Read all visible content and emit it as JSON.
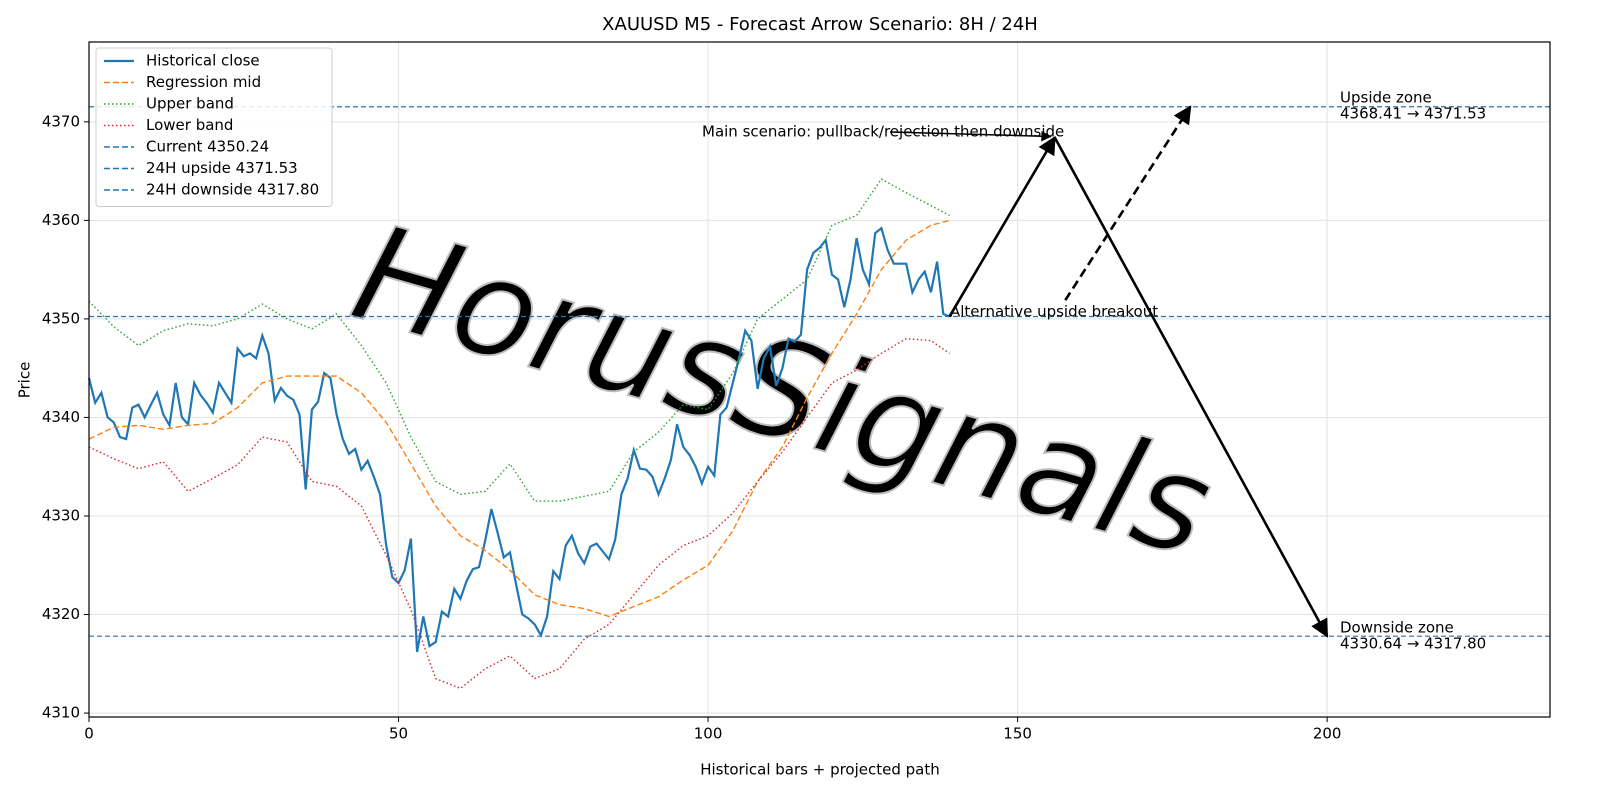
{
  "chart_data": {
    "type": "line",
    "title": "XAUUSD M5 - Forecast Arrow Scenario: 8H / 24H",
    "xlabel": "Historical bars + projected path",
    "ylabel": "Price",
    "xlim": [
      0,
      236
    ],
    "ylim": [
      4309.6,
      4378.1
    ],
    "xticks": [
      0,
      50,
      100,
      150,
      200
    ],
    "yticks": [
      4310,
      4320,
      4330,
      4340,
      4350,
      4360,
      4370
    ],
    "grid": true,
    "legend": "upper left",
    "watermark": "HorusSignals",
    "series": [
      {
        "name": "Historical close",
        "color": "#1f77b4",
        "style": "solid",
        "x": [
          0,
          1,
          2,
          3,
          4,
          5,
          6,
          7,
          8,
          9,
          10,
          11,
          12,
          13,
          14,
          15,
          16,
          17,
          18,
          19,
          20,
          21,
          22,
          23,
          24,
          25,
          26,
          27,
          28,
          29,
          30,
          31,
          32,
          33,
          34,
          35,
          36,
          37,
          38,
          39,
          40,
          41,
          42,
          43,
          44,
          45,
          46,
          47,
          48,
          49,
          50,
          51,
          52,
          53,
          54,
          55,
          56,
          57,
          58,
          59,
          60,
          61,
          62,
          63,
          64,
          65,
          66,
          67,
          68,
          69,
          70,
          71,
          72,
          73,
          74,
          75,
          76,
          77,
          78,
          79,
          80,
          81,
          82,
          83,
          84,
          85,
          86,
          87,
          88,
          89,
          90,
          91,
          92,
          93,
          94,
          95,
          96,
          97,
          98,
          99,
          100,
          101,
          102,
          103,
          104,
          105,
          106,
          107,
          108,
          109,
          110,
          111,
          112,
          113,
          114,
          115,
          116,
          117,
          118,
          119,
          120,
          121,
          122,
          123,
          124,
          125,
          126,
          127,
          128,
          129,
          130,
          131,
          132,
          133,
          134,
          135,
          136,
          137,
          138,
          139
        ],
        "values": [
          4344,
          4341.5,
          4342.5,
          4340,
          4339.5,
          4338,
          4337.8,
          4341,
          4341.3,
          4340,
          4341.3,
          4342.5,
          4340.3,
          4339.2,
          4343.5,
          4340,
          4339.3,
          4343.5,
          4342.3,
          4341.5,
          4340.5,
          4343.5,
          4342.5,
          4341.5,
          4347,
          4346.2,
          4346.5,
          4346,
          4348.3,
          4346.5,
          4341.7,
          4343,
          4342.2,
          4341.8,
          4340.3,
          4332.7,
          4340.8,
          4341.6,
          4344.5,
          4344,
          4340.3,
          4337.8,
          4336.3,
          4336.8,
          4334.7,
          4335.6,
          4334,
          4332.2,
          4327,
          4323.8,
          4323.2,
          4324.5,
          4327.7,
          4316.2,
          4319.8,
          4316.8,
          4317.2,
          4320.3,
          4319.8,
          4322.6,
          4321.6,
          4323.4,
          4324.6,
          4324.8,
          4327.5,
          4330.7,
          4328.3,
          4325.8,
          4326.3,
          4323,
          4320,
          4319.6,
          4319,
          4317.9,
          4319.8,
          4324.4,
          4323.6,
          4327,
          4328,
          4326.2,
          4325.2,
          4326.9,
          4327.2,
          4326.4,
          4325.6,
          4327.6,
          4332.2,
          4333.8,
          4336.7,
          4334.8,
          4334.7,
          4334,
          4332.2,
          4333.8,
          4335.7,
          4339.3,
          4337,
          4336.2,
          4335,
          4333.3,
          4335,
          4334.1,
          4340.3,
          4341,
          4343.5,
          4346,
          4348.8,
          4347.8,
          4342.9,
          4346,
          4347.2,
          4343.2,
          4345,
          4348,
          4347.7,
          4348.4,
          4355,
          4356.7,
          4357.2,
          4358,
          4354.5,
          4354,
          4351.2,
          4354,
          4358.2,
          4355,
          4353.5,
          4358.7,
          4359.2,
          4357,
          4355.6,
          4355.6,
          4355.6,
          4352.7,
          4354,
          4354.8,
          4352.7,
          4355.8,
          4350.5,
          4350.24
        ]
      },
      {
        "name": "Regression mid",
        "color": "#ff7f0e",
        "style": "dashed",
        "x": [
          0,
          4,
          8,
          12,
          16,
          20,
          24,
          28,
          32,
          36,
          40,
          44,
          48,
          52,
          56,
          60,
          64,
          68,
          72,
          76,
          80,
          84,
          88,
          92,
          96,
          100,
          104,
          108,
          112,
          116,
          120,
          124,
          128,
          132,
          136,
          139
        ],
        "values": [
          4337.8,
          4339,
          4339.2,
          4338.8,
          4339.2,
          4339.4,
          4341,
          4343.5,
          4344.2,
          4344.2,
          4344.2,
          4342.5,
          4339.5,
          4335.3,
          4331,
          4328,
          4326.5,
          4324.5,
          4322,
          4321,
          4320.6,
          4319.8,
          4320.8,
          4321.8,
          4323.5,
          4325,
          4328.5,
          4333.5,
          4337,
          4342,
          4346.5,
          4350.5,
          4355,
          4358,
          4359.5,
          4360
        ]
      },
      {
        "name": "Upper band",
        "color": "#2ca02c",
        "style": "dotted",
        "x": [
          0,
          4,
          8,
          12,
          16,
          20,
          24,
          28,
          32,
          36,
          40,
          44,
          48,
          52,
          56,
          60,
          64,
          68,
          72,
          76,
          80,
          84,
          88,
          92,
          96,
          100,
          104,
          108,
          112,
          116,
          120,
          124,
          128,
          132,
          136,
          139
        ],
        "values": [
          4351.8,
          4349.2,
          4347.3,
          4348.8,
          4349.5,
          4349.3,
          4350,
          4351.5,
          4350,
          4349,
          4350.5,
          4347.3,
          4343.5,
          4338,
          4333.5,
          4332.2,
          4332.5,
          4335.3,
          4331.5,
          4331.5,
          4332,
          4332.5,
          4336.5,
          4338.5,
          4341.3,
          4340.8,
          4344.5,
          4350,
          4352,
          4354,
          4359.5,
          4360.5,
          4364.2,
          4362.8,
          4361.5,
          4360.5
        ]
      },
      {
        "name": "Lower band",
        "color": "#d62728",
        "style": "dotted",
        "x": [
          0,
          4,
          8,
          12,
          16,
          20,
          24,
          28,
          32,
          36,
          40,
          44,
          48,
          52,
          56,
          60,
          64,
          68,
          72,
          76,
          80,
          84,
          88,
          92,
          96,
          100,
          104,
          108,
          112,
          116,
          120,
          124,
          128,
          132,
          136,
          139
        ],
        "values": [
          4337,
          4335.8,
          4334.8,
          4335.5,
          4332.5,
          4333.8,
          4335.2,
          4338,
          4337.5,
          4333.5,
          4333,
          4331,
          4326,
          4320.5,
          4313.5,
          4312.5,
          4314.5,
          4315.8,
          4313.5,
          4314.5,
          4317.5,
          4319,
          4322,
          4325,
          4327,
          4328,
          4330.3,
          4333.5,
          4336.5,
          4340,
          4343.5,
          4344.8,
          4346.5,
          4348,
          4347.8,
          4346.5
        ]
      }
    ],
    "hlines": [
      {
        "name": "Current 4350.24",
        "color": "#1f77b4",
        "value": 4350.24
      },
      {
        "name": "24H upside 4371.53",
        "color": "#1f77b4",
        "value": 4371.53
      },
      {
        "name": "24H downside 4317.80",
        "color": "#1f77b4",
        "value": 4317.8
      }
    ],
    "arrows": [
      {
        "label": "Main scenario: pullback/rejection then downside",
        "style": "solid",
        "x": [
          139,
          156,
          200
        ],
        "values": [
          4350.24,
          4368.41,
          4317.8
        ]
      },
      {
        "label": "Alternative upside breakout",
        "style": "dashed",
        "x": [
          157.7,
          177.9
        ],
        "values": [
          4351.9,
          4371.53
        ]
      }
    ],
    "zones": [
      {
        "title": "Upside zone",
        "range": "4368.41 → 4371.53"
      },
      {
        "title": "Downside zone",
        "range": "4330.64 → 4317.80"
      }
    ]
  }
}
